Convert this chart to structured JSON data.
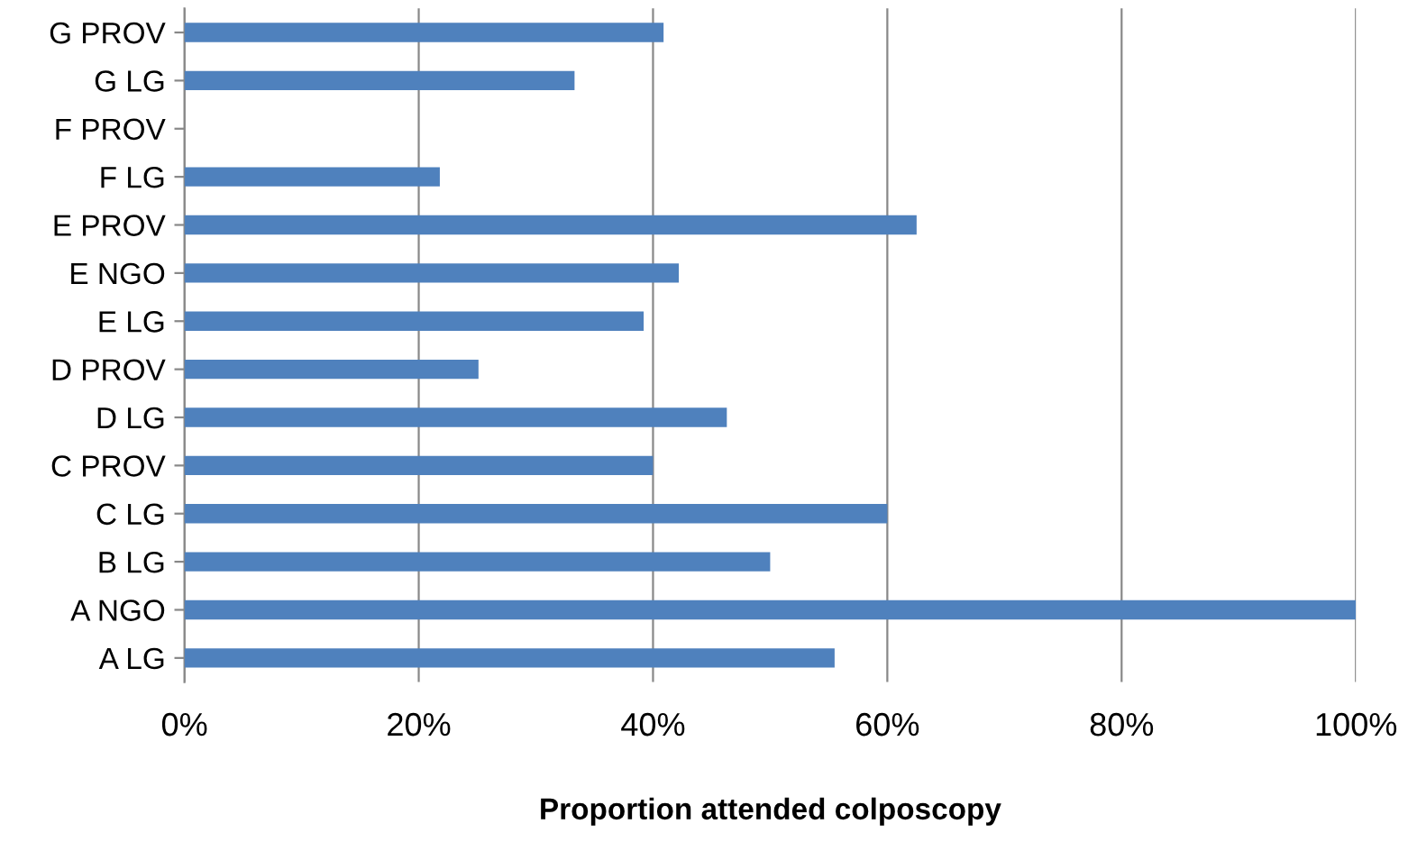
{
  "chart_data": {
    "type": "bar",
    "orientation": "horizontal",
    "xlabel": "Proportion attended colposcopy",
    "categories": [
      "G PROV",
      "G LG",
      "F PROV",
      "F LG",
      "E PROV",
      "E NGO",
      "E LG",
      "D PROV",
      "D LG",
      "C PROV",
      "C LG",
      "B LG",
      "A NGO",
      "A LG"
    ],
    "values": [
      40.9,
      33.3,
      null,
      21.8,
      62.5,
      42.2,
      39.2,
      25.1,
      46.3,
      40,
      60,
      50,
      100,
      55.5
    ],
    "color": "#4f81bd",
    "xlim": [
      0,
      100
    ],
    "xticks": [
      {
        "value": 0,
        "label": "0%"
      },
      {
        "value": 20,
        "label": "20%"
      },
      {
        "value": 40,
        "label": "40%"
      },
      {
        "value": 60,
        "label": "60%"
      },
      {
        "value": 80,
        "label": "80%"
      },
      {
        "value": 100,
        "label": "100%"
      }
    ],
    "grid": "x",
    "legend": false
  }
}
